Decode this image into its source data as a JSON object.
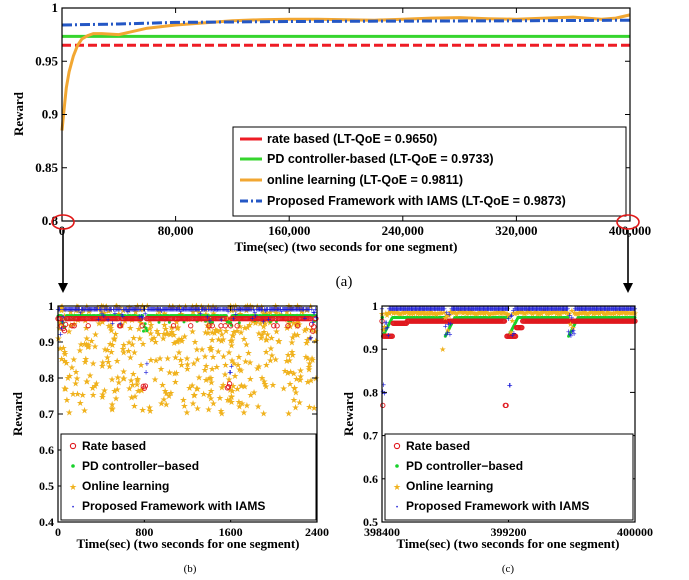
{
  "colors": {
    "rate": "#ee1c25",
    "pd": "#36d52e",
    "online": "#f2a732",
    "proposed": "#1a3fb8",
    "proposed_dash": "#2457c5",
    "scatter_rate": "#e0181e",
    "scatter_pd": "#17d12a",
    "scatter_online": "#f0b21d",
    "scatter_proposed": "#1818d6",
    "marker_circle": "#e01818"
  },
  "captions": {
    "a": "(a)",
    "b": "(b)",
    "c": "(c)"
  },
  "chart_data": [
    {
      "id": "a",
      "type": "line",
      "title": "",
      "xlabel": "Time(sec) (two seconds for one segment)",
      "ylabel": "Reward",
      "xlim": [
        0,
        400000
      ],
      "ylim": [
        0.8,
        1.0
      ],
      "x_ticks": [
        0,
        80000,
        160000,
        240000,
        320000,
        400000
      ],
      "x_tick_labels": [
        "0",
        "80,000",
        "160,000",
        "240,000",
        "320,000",
        "400,000"
      ],
      "y_ticks": [
        0.8,
        0.85,
        0.9,
        0.95,
        1.0
      ],
      "y_tick_labels": [
        "0.8",
        "0.85",
        "0.9",
        "0.95",
        "1"
      ],
      "grid": false,
      "legend_position": "bottom-right",
      "series": [
        {
          "name": "rate based (LT-QoE = 0.9650)",
          "style": "dashed",
          "x": [
            0,
            400000
          ],
          "y": [
            0.965,
            0.965
          ]
        },
        {
          "name": "PD controller-based (LT-QoE = 0.9733)",
          "style": "solid",
          "x": [
            0,
            400000
          ],
          "y": [
            0.9733,
            0.9733
          ]
        },
        {
          "name": "online learning (LT-QoE = 0.9811)",
          "style": "solid",
          "x": [
            0,
            1500,
            3000,
            5000,
            8000,
            11000,
            14000,
            18000,
            22000,
            28000,
            40000,
            60000,
            80000,
            100000,
            120000,
            140000,
            160000,
            180000,
            200000,
            220000,
            240000,
            260000,
            280000,
            300000,
            320000,
            340000,
            360000,
            380000,
            390000,
            400000
          ],
          "y": [
            0.885,
            0.905,
            0.925,
            0.94,
            0.955,
            0.965,
            0.971,
            0.974,
            0.976,
            0.976,
            0.975,
            0.981,
            0.984,
            0.986,
            0.988,
            0.989,
            0.9895,
            0.9895,
            0.989,
            0.9885,
            0.9895,
            0.9905,
            0.991,
            0.99,
            0.9895,
            0.9905,
            0.9915,
            0.9895,
            0.9905,
            0.9935
          ]
        },
        {
          "name": "Proposed Framework with IAMS (LT-QoE = 0.9873)",
          "style": "dashdot",
          "x": [
            0,
            40000,
            80000,
            160000,
            240000,
            320000,
            400000
          ],
          "y": [
            0.984,
            0.985,
            0.9865,
            0.9873,
            0.9877,
            0.988,
            0.9885
          ]
        }
      ],
      "annotations": [
        {
          "type": "ellipse",
          "x": 0,
          "y": 0.8
        },
        {
          "type": "ellipse",
          "x": 400000,
          "y": 0.8
        }
      ]
    },
    {
      "id": "b",
      "type": "scatter",
      "title": "",
      "xlabel": "Time(sec) (two seconds for one segment)",
      "ylabel": "Reward",
      "xlim": [
        0,
        2400
      ],
      "ylim": [
        0.4,
        1.0
      ],
      "x_ticks": [
        0,
        800,
        1600,
        2400
      ],
      "x_tick_labels": [
        "0",
        "800",
        "1600",
        "2400"
      ],
      "y_ticks": [
        0.4,
        0.5,
        0.6,
        0.7,
        0.8,
        0.9,
        1.0
      ],
      "y_tick_labels": [
        "0.4",
        "0.5",
        "0.6",
        "0.7",
        "0.8",
        "0.9",
        "1"
      ],
      "grid": false,
      "legend_position": "bottom-left",
      "series": [
        {
          "name": "Rate based",
          "marker": "circle",
          "baseline": 0.965,
          "dips": [
            [
              60,
              0.93
            ],
            [
              800,
              0.77
            ],
            [
              1580,
              0.77
            ],
            [
              2360,
              0.93
            ]
          ]
        },
        {
          "name": "PD controller−based",
          "marker": "dot",
          "baseline": 0.9733,
          "dips": [
            [
              60,
              0.94
            ],
            [
              810,
              0.93
            ],
            [
              1590,
              0.93
            ],
            [
              2370,
              0.95
            ]
          ]
        },
        {
          "name": "Online learning",
          "marker": "star",
          "y_range": [
            0.7,
            1.0
          ],
          "density": "high"
        },
        {
          "name": "Proposed Framework with IAMS",
          "marker": "plus",
          "baseline": 0.99,
          "dips": [
            [
              30,
              0.92
            ],
            [
              820,
              0.8
            ],
            [
              1600,
              0.79
            ],
            [
              2340,
              0.9
            ]
          ]
        }
      ]
    },
    {
      "id": "c",
      "type": "scatter",
      "title": "",
      "xlabel": "Time(sec) (two seconds for one segment)",
      "ylabel": "Reward",
      "xlim": [
        398400,
        400000
      ],
      "ylim": [
        0.5,
        1.0
      ],
      "x_ticks": [
        398400,
        399200,
        400000
      ],
      "x_tick_labels": [
        "398400",
        "399200",
        "400000"
      ],
      "y_ticks": [
        0.5,
        0.6,
        0.7,
        0.8,
        0.9,
        1.0
      ],
      "y_tick_labels": [
        "0.5",
        "0.6",
        "0.7",
        "0.8",
        "0.9",
        "1"
      ],
      "grid": false,
      "legend_position": "bottom-left",
      "series": [
        {
          "name": "Rate based",
          "marker": "circle",
          "baseline": 0.965,
          "recoveries": [
            [
              398405,
              0.77,
              398470,
              0.93,
              398560
            ],
            [
              399180,
              0.77,
              399220,
              0.93,
              399290
            ]
          ]
        },
        {
          "name": "PD controller−based",
          "marker": "dot",
          "baseline": 0.9733
        },
        {
          "name": "Online learning",
          "marker": "star",
          "baseline": 0.988
        },
        {
          "name": "Proposed Framework with IAMS",
          "marker": "plus",
          "baseline": 0.993
        }
      ]
    }
  ]
}
